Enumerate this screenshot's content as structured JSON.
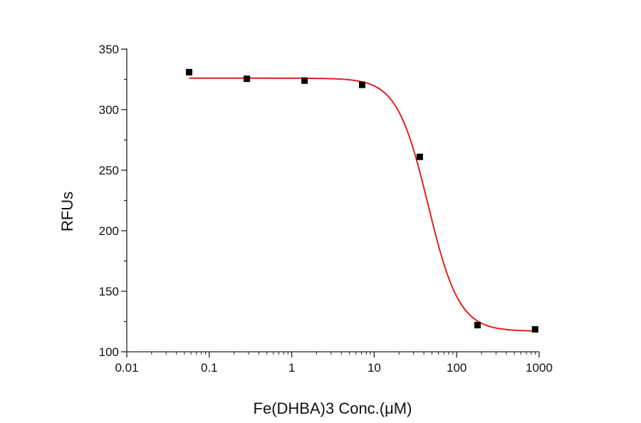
{
  "chart_data": {
    "type": "scatter",
    "title": "",
    "xlabel": "Fe(DHBA)3 Conc.(μM)",
    "ylabel": "RFUs",
    "x_scale": "log",
    "xlim": [
      0.01,
      1000
    ],
    "ylim": [
      100,
      350
    ],
    "x_ticks": [
      0.01,
      0.1,
      1,
      10,
      100,
      1000
    ],
    "x_tick_labels": [
      "0.01",
      "0.1",
      "1",
      "10",
      "100",
      "1000"
    ],
    "y_ticks": [
      100,
      150,
      200,
      250,
      300,
      350
    ],
    "y_tick_labels": [
      "100",
      "150",
      "200",
      "250",
      "300",
      "350"
    ],
    "grid": false,
    "series": [
      {
        "kind": "points",
        "marker": "square",
        "color": "#000000",
        "x": [
          0.057,
          0.286,
          1.43,
          7.14,
          35.7,
          179,
          893
        ],
        "y": [
          331,
          325.5,
          324,
          320.5,
          261,
          122,
          118.5
        ]
      },
      {
        "kind": "fit-line",
        "color": "#e41e1e",
        "model": "four-parameter logistic",
        "top": 326,
        "bottom": 117,
        "ec50": 45,
        "hill_slope": 2.3
      }
    ]
  }
}
